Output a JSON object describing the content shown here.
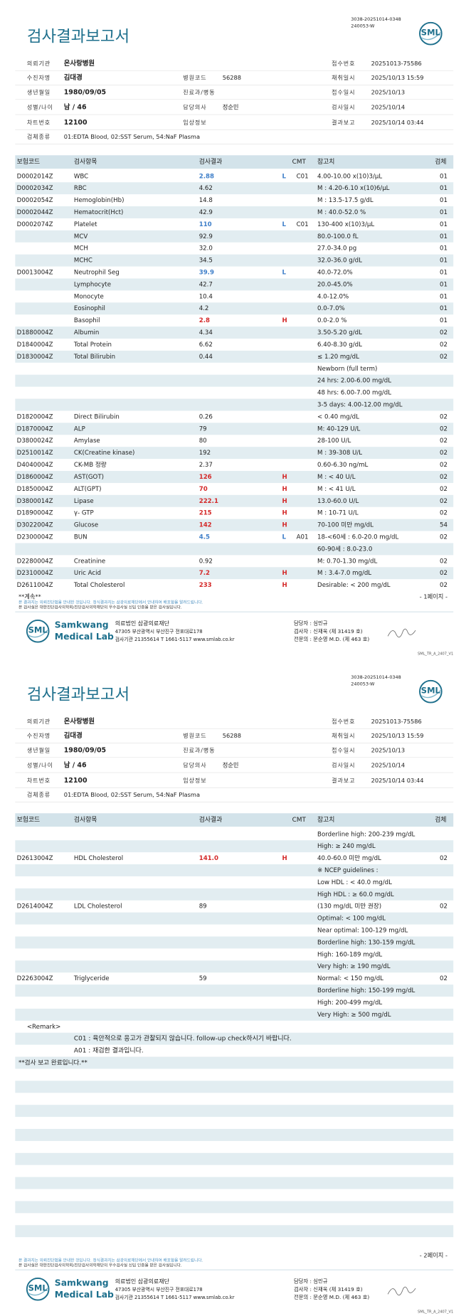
{
  "header": {
    "doc_ids": [
      "3038-20251014-0348",
      "240053-W"
    ],
    "title": "검사결과보고서",
    "logo": "SML",
    "fields": [
      [
        {
          "label": "의뢰기관",
          "value": "온사랑병원"
        },
        null,
        {
          "label": "접수번호",
          "value": "20251013-75586"
        }
      ],
      [
        {
          "label": "수진자명",
          "value": "김대경"
        },
        {
          "label": "병원코드",
          "value": "56288"
        },
        {
          "label": "채취일시",
          "value": "2025/10/13 15:59"
        }
      ],
      [
        {
          "label": "생년월일",
          "value": "1980/09/05"
        },
        {
          "label": "진료과/병동"
        },
        {
          "label": "접수일시",
          "value": "2025/10/13"
        }
      ],
      [
        {
          "label": "성별/나이",
          "value": "남 / 46"
        },
        {
          "label": "담당의사",
          "value": "정순민"
        },
        {
          "label": "검사일시",
          "value": "2025/10/14"
        }
      ],
      [
        {
          "label": "차트번호",
          "value": "12100"
        },
        {
          "label": "임상정보"
        },
        {
          "label": "결과보고",
          "value": "2025/10/14 03:44"
        }
      ],
      [
        {
          "label": "검체종류",
          "value": "01:EDTA Blood, 02:SST Serum, 54:NaF Plasma"
        }
      ]
    ]
  },
  "table_header": {
    "code": "보험코드",
    "name": "검사항목",
    "result": "검사결과",
    "cmt": "CMT",
    "ref": "참고치",
    "spec": "검체"
  },
  "pages": [
    {
      "rows": [
        {
          "code": "D0002014Z",
          "name": "WBC",
          "result": "2.88",
          "flag": "L",
          "cmt": "C01",
          "ref": "4.00-10.00 x(10)3/μL",
          "spec": "01"
        },
        {
          "code": "D0002034Z",
          "name": "RBC",
          "result": "4.62",
          "ref": "M : 4.20-6.10 x(10)6/μL",
          "spec": "01"
        },
        {
          "code": "D0002054Z",
          "name": "Hemoglobin(Hb)",
          "result": "14.8",
          "ref": "M : 13.5-17.5 g/dL",
          "spec": "01"
        },
        {
          "code": "D0002044Z",
          "name": "Hematocrit(Hct)",
          "result": "42.9",
          "ref": "M : 40.0-52.0 %",
          "spec": "01"
        },
        {
          "code": "D0002074Z",
          "name": "Platelet",
          "result": "110",
          "flag": "L",
          "cmt": "C01",
          "ref": "130-400 x(10)3/μL",
          "spec": "01"
        },
        {
          "name": "MCV",
          "result": "92.9",
          "ref": "80.0-100.0 fL",
          "spec": "01"
        },
        {
          "name": "MCH",
          "result": "32.0",
          "ref": "27.0-34.0 pg",
          "spec": "01"
        },
        {
          "name": "MCHC",
          "result": "34.5",
          "ref": "32.0-36.0 g/dL",
          "spec": "01"
        },
        {
          "code": "D0013004Z",
          "name": "Neutrophil Seg",
          "result": "39.9",
          "flag": "L",
          "ref": "40.0-72.0%",
          "spec": "01"
        },
        {
          "name": "Lymphocyte",
          "result": "42.7",
          "ref": "20.0-45.0%",
          "spec": "01"
        },
        {
          "name": "Monocyte",
          "result": "10.4",
          "ref": "4.0-12.0%",
          "spec": "01"
        },
        {
          "name": "Eosinophil",
          "result": "4.2",
          "ref": "0.0-7.0%",
          "spec": "01"
        },
        {
          "name": "Basophil",
          "result": "2.8",
          "flag": "H",
          "ref": "0.0-2.0 %",
          "spec": "01"
        },
        {
          "code": "D1880004Z",
          "name": "Albumin",
          "result": "4.34",
          "ref": "3.50-5.20 g/dL",
          "spec": "02"
        },
        {
          "code": "D1840004Z",
          "name": "Total Protein",
          "result": "6.62",
          "ref": "6.40-8.30 g/dL",
          "spec": "02"
        },
        {
          "code": "D1830004Z",
          "name": "Total Bilirubin",
          "result": "0.44",
          "ref": "≤ 1.20 mg/dL",
          "spec": "02"
        },
        {
          "ref": "Newborn (full term)"
        },
        {
          "ref": "24 hrs: 2.00-6.00 mg/dL"
        },
        {
          "ref": "48 hrs: 6.00-7.00 mg/dL"
        },
        {
          "ref": "3-5 days: 4.00-12.00 mg/dL"
        },
        {
          "code": "D1820004Z",
          "name": "Direct Bilirubin",
          "result": "0.26",
          "ref": "< 0.40 mg/dL",
          "spec": "02"
        },
        {
          "code": "D1870004Z",
          "name": "ALP",
          "result": "79",
          "ref": "M: 40-129 U/L",
          "spec": "02"
        },
        {
          "code": "D3800024Z",
          "name": "Amylase",
          "result": "80",
          "ref": "28-100 U/L",
          "spec": "02"
        },
        {
          "code": "D2510014Z",
          "name": "CK(Creatine kinase)",
          "result": "192",
          "ref": "M : 39-308 U/L",
          "spec": "02"
        },
        {
          "code": "D4040004Z",
          "name": "CK-MB 정량",
          "result": "2.37",
          "ref": "0.60-6.30 ng/mL",
          "spec": "02"
        },
        {
          "code": "D1860004Z",
          "name": "AST(GOT)",
          "result": "126",
          "flag": "H",
          "ref": "M : < 40 U/L",
          "spec": "02"
        },
        {
          "code": "D1850004Z",
          "name": "ALT(GPT)",
          "result": "70",
          "flag": "H",
          "ref": "M : < 41 U/L",
          "spec": "02"
        },
        {
          "code": "D3800014Z",
          "name": "Lipase",
          "result": "222.1",
          "flag": "H",
          "ref": "13.0-60.0 U/L",
          "spec": "02"
        },
        {
          "code": "D1890004Z",
          "name": "γ- GTP",
          "result": "215",
          "flag": "H",
          "ref": "M : 10-71 U/L",
          "spec": "02"
        },
        {
          "code": "D3022004Z",
          "name": "Glucose",
          "result": "142",
          "flag": "H",
          "ref": "70-100 미만 mg/dL",
          "spec": "54"
        },
        {
          "code": "D2300004Z",
          "name": "BUN",
          "result": "4.5",
          "flag": "L",
          "cmt": "A01",
          "ref": "18-<60세 : 6.0-20.0 mg/dL",
          "spec": "02"
        },
        {
          "ref": "60-90세 : 8.0-23.0"
        },
        {
          "code": "D2280004Z",
          "name": "Creatinine",
          "result": "0.92",
          "ref": "M: 0.70-1.30 mg/dL",
          "spec": "02"
        },
        {
          "code": "D2310004Z",
          "name": "Uric Acid",
          "result": "7.2",
          "flag": "H",
          "ref": "M : 3.4-7.0 mg/dL",
          "spec": "02"
        },
        {
          "code": "D2611004Z",
          "name": "Total Cholesterol",
          "result": "233",
          "flag": "H",
          "ref": "Desirable: < 200 mg/dL",
          "spec": "02"
        }
      ],
      "continued": "**계속**",
      "page_number": "- 1페이지 -"
    },
    {
      "rows": [
        {
          "ref": "Borderline high: 200-239 mg/dL"
        },
        {
          "ref": "High: ≥ 240 mg/dL"
        },
        {
          "code": "D2613004Z",
          "name": "HDL Cholesterol",
          "result": "141.0",
          "flag": "H",
          "ref": "40.0-60.0 미만 mg/dL",
          "spec": "02"
        },
        {
          "ref": "※ NCEP guidelines :"
        },
        {
          "ref": "Low HDL : < 40.0 mg/dL"
        },
        {
          "ref": "High HDL : ≥ 60.0 mg/dL"
        },
        {
          "code": "D2614004Z",
          "name": "LDL Cholesterol",
          "result": "89",
          "ref": "(130 mg/dL 미만 권장)",
          "spec": "02"
        },
        {
          "ref": "Optimal: < 100 mg/dL"
        },
        {
          "ref": "Near optimal: 100-129 mg/dL"
        },
        {
          "ref": "Borderline high: 130-159 mg/dL"
        },
        {
          "ref": "High: 160-189 mg/dL"
        },
        {
          "ref": "Very high: ≥ 190 mg/dL"
        },
        {
          "code": "D2263004Z",
          "name": "Triglyceride",
          "result": "59",
          "ref": "Normal: < 150 mg/dL",
          "spec": "02"
        },
        {
          "ref": "Borderline high: 150-199 mg/dL"
        },
        {
          "ref": "High: 200-499 mg/dL"
        },
        {
          "ref": "Very High: ≥ 500 mg/dL"
        }
      ],
      "remark": {
        "title": "<Remark>",
        "lines": [
          "C01 : 육안적으로 응고가 관찰되지 않습니다. follow-up check하시기 바랍니다.",
          "A01 : 재검한 결과입니다."
        ]
      },
      "closing": "**검사 보고 완료입니다.**",
      "page_number": "- 2페이지 -"
    }
  ],
  "notices": [
    "본 결과지는 의뢰진단법을 안내한 것입니다. 정식결과지는 삼광의료재단에서 안내하여 배포함을 알려드립니다.",
    "본 검사실은 대한진단검사의학회/진단검사의학재단의 우수검사실 신임 인증을 받은 검사실입니다."
  ],
  "footer": {
    "brand": [
      "Samkwang",
      "Medical Lab"
    ],
    "org": [
      "의료법인 삼광의료재단",
      "47305 부산광역시 부산진구 전포대로178",
      "검사기관 21355614 T 1661-5117 www.smlab.co.kr"
    ],
    "staff": [
      "담당자 : 심민규",
      "검사자 : 신재욱 (제 31419 호)",
      "전문의 : 문순영 M.D. (제 463 호)"
    ],
    "form_code": "SML_TR_A_2407_V1"
  }
}
